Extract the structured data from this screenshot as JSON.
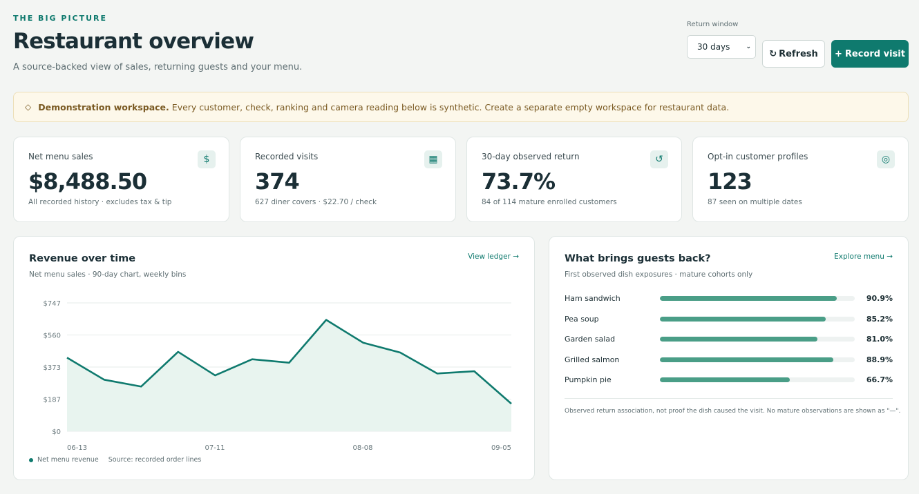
{
  "header": {
    "eyebrow": "THE BIG PICTURE",
    "title": "Restaurant overview",
    "subtitle": "A source-backed view of sales, returning guests and your menu."
  },
  "controls": {
    "return_window_label": "Return window",
    "return_window_value": "30 days",
    "refresh_label": "Refresh",
    "refresh_icon": "↻",
    "record_label": "Record visit",
    "record_icon": "+"
  },
  "notice": {
    "icon": "◇",
    "bold": "Demonstration workspace.",
    "text": "Every customer, check, ranking and camera reading below is synthetic. Create a separate empty workspace for restaurant data."
  },
  "kpis": [
    {
      "label": "Net menu sales",
      "value": "$8,488.50",
      "sub": "All recorded history · excludes tax & tip",
      "icon": "$",
      "icon_name": "dollar-icon"
    },
    {
      "label": "Recorded visits",
      "value": "374",
      "sub": "627 diner covers · $22.70 / check",
      "icon": "▦",
      "icon_name": "calendar-icon"
    },
    {
      "label": "30-day observed return",
      "value": "73.7%",
      "sub": "84 of 114 mature enrolled customers",
      "icon": "↺",
      "icon_name": "return-icon"
    },
    {
      "label": "Opt-in customer profiles",
      "value": "123",
      "sub": "87 seen on multiple dates",
      "icon": "◎",
      "icon_name": "profile-icon"
    }
  ],
  "revenue": {
    "title": "Revenue over time",
    "subtitle": "Net menu sales · 90-day chart, weekly bins",
    "link": "View ledger →",
    "legend_label": "Net menu revenue",
    "source": "Source: recorded order lines"
  },
  "chart_data": {
    "type": "area",
    "title": "Revenue over time",
    "x_tick_labels": [
      "06-13",
      "07-11",
      "08-08",
      "09-05"
    ],
    "y_tick_labels": [
      "$747",
      "$560",
      "$373",
      "$187",
      "$0"
    ],
    "ylim": [
      0,
      747
    ],
    "grid": true,
    "series": [
      {
        "name": "Net menu revenue",
        "values": [
          428,
          300,
          260,
          462,
          325,
          419,
          399,
          648,
          515,
          458,
          336,
          349,
          160
        ]
      }
    ]
  },
  "guests_back": {
    "title": "What brings guests back?",
    "subtitle": "First observed dish exposures · mature cohorts only",
    "link": "Explore menu →",
    "dishes": [
      {
        "name": "Ham sandwich",
        "pct": "90.9%",
        "value": 0.909
      },
      {
        "name": "Pea soup",
        "pct": "85.2%",
        "value": 0.852
      },
      {
        "name": "Garden salad",
        "pct": "81.0%",
        "value": 0.81
      },
      {
        "name": "Grilled salmon",
        "pct": "88.9%",
        "value": 0.889
      },
      {
        "name": "Pumpkin pie",
        "pct": "66.7%",
        "value": 0.667
      }
    ],
    "footnote": "Observed return association, not proof the dish caused the visit. No mature observations are shown as \"—\"."
  },
  "colors": {
    "accent": "#0f7a6e",
    "area_fill": "#e8f4ef",
    "bar_fill": "#4a9e87"
  }
}
